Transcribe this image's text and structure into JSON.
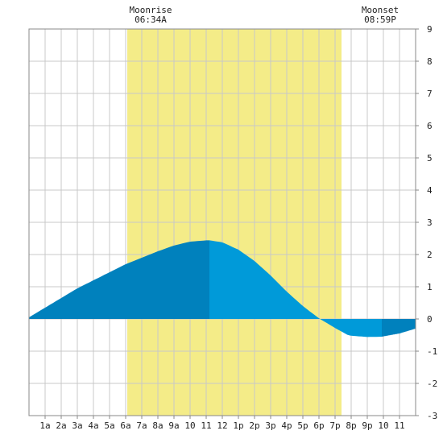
{
  "chart_data": {
    "type": "area",
    "title": "",
    "xlabel": "",
    "ylabel": "",
    "xlim": [
      0,
      24
    ],
    "ylim": [
      -3,
      9
    ],
    "y_ticks": [
      9,
      8,
      7,
      6,
      5,
      4,
      3,
      2,
      1,
      0,
      -1,
      -2,
      -3
    ],
    "x_ticks": [
      {
        "x": 1,
        "label": "1a"
      },
      {
        "x": 2,
        "label": "2a"
      },
      {
        "x": 3,
        "label": "3a"
      },
      {
        "x": 4,
        "label": "4a"
      },
      {
        "x": 5,
        "label": "5a"
      },
      {
        "x": 6,
        "label": "6a"
      },
      {
        "x": 7,
        "label": "7a"
      },
      {
        "x": 8,
        "label": "8a"
      },
      {
        "x": 9,
        "label": "9a"
      },
      {
        "x": 10,
        "label": "10"
      },
      {
        "x": 11,
        "label": "11"
      },
      {
        "x": 12,
        "label": "12"
      },
      {
        "x": 13,
        "label": "1p"
      },
      {
        "x": 14,
        "label": "2p"
      },
      {
        "x": 15,
        "label": "3p"
      },
      {
        "x": 16,
        "label": "4p"
      },
      {
        "x": 17,
        "label": "5p"
      },
      {
        "x": 18,
        "label": "6p"
      },
      {
        "x": 19,
        "label": "7p"
      },
      {
        "x": 20,
        "label": "8p"
      },
      {
        "x": 21,
        "label": "9p"
      },
      {
        "x": 22,
        "label": "10"
      },
      {
        "x": 23,
        "label": "11"
      }
    ],
    "grid": true,
    "moon": {
      "rise_label": "Moonrise",
      "rise_time": "06:34A",
      "rise_x": 6.1,
      "set_label": "Moonset",
      "set_time": "08:59P",
      "set_x": 19.4
    },
    "tide": {
      "x": [
        0,
        1,
        2,
        3,
        4,
        5,
        6,
        7,
        8,
        9,
        10,
        11,
        11.2,
        12,
        13,
        14,
        15,
        16,
        17,
        18,
        19,
        19.8,
        20,
        21,
        21.9,
        22,
        23,
        24
      ],
      "y": [
        0.05,
        0.35,
        0.65,
        0.95,
        1.2,
        1.45,
        1.7,
        1.9,
        2.1,
        2.28,
        2.4,
        2.44,
        2.44,
        2.38,
        2.15,
        1.8,
        1.35,
        0.85,
        0.4,
        0.02,
        -0.28,
        -0.5,
        -0.52,
        -0.56,
        -0.55,
        -0.54,
        -0.45,
        -0.3
      ],
      "high_x": 11.2,
      "low_x": 21.9
    },
    "colors": {
      "moon_band": "#f4ec88",
      "tide_dark": "#0081bd",
      "tide_light": "#009ad9",
      "grid": "#c8c8c8",
      "frame": "#888888"
    }
  }
}
